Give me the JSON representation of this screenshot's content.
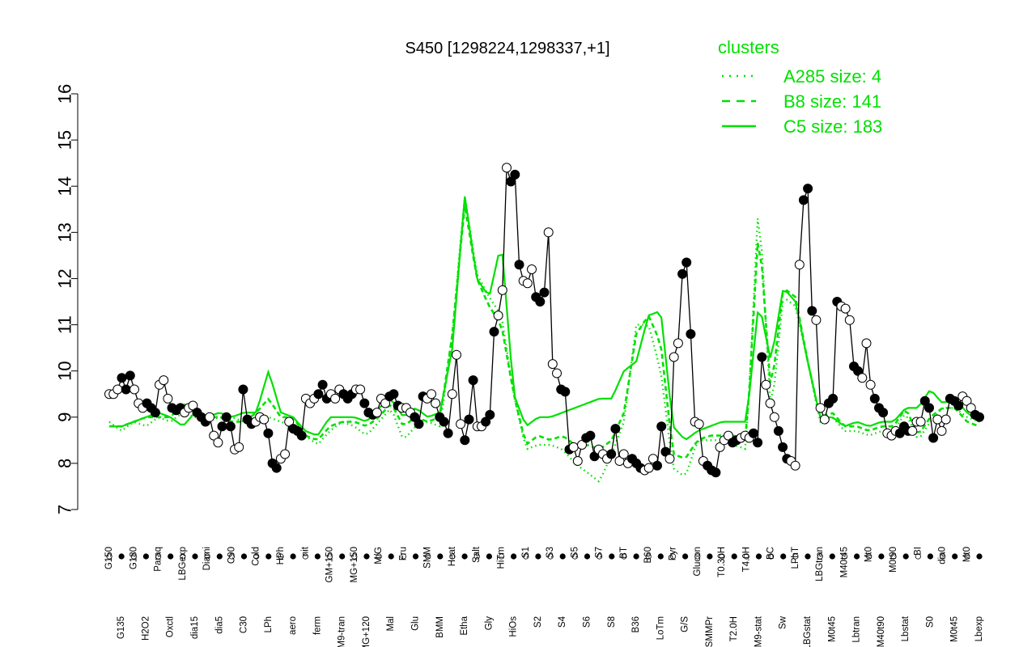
{
  "chart_data": {
    "type": "line",
    "title": "S450 [1298224,1298337,+1]",
    "xlabel": "",
    "ylabel": "",
    "ylim": [
      7,
      16
    ],
    "yticks": [
      7,
      8,
      9,
      10,
      11,
      12,
      13,
      14,
      15,
      16
    ],
    "legend": {
      "title": "clusters",
      "placement": "top-right",
      "color": "#00e000",
      "entries": [
        {
          "label": "A285 size: 4",
          "style": "dotted"
        },
        {
          "label": "B8 size: 141",
          "style": "dashed"
        },
        {
          "label": "C5 size: 183",
          "style": "solid"
        }
      ]
    },
    "x_tick_labels": [
      "G150",
      "G135",
      "G180",
      "H2O2",
      "Paraq",
      "Oxctl",
      "LBGexp",
      "dia15",
      "Diami",
      "dia5",
      "C90",
      "C30",
      "Cold",
      "LPh",
      "HPh",
      "aero",
      "nit",
      "ferm",
      "GM+150",
      "M9-tran",
      "MG+150",
      "MG+120",
      "M/G",
      "Mal",
      "Fru",
      "Glu",
      "SMM",
      "BMM",
      "Heat",
      "Etha",
      "Salt",
      "Gly",
      "HiTm",
      "HiOs",
      "S1",
      "S2",
      "S3",
      "S4",
      "S5",
      "S6",
      "S7",
      "S8",
      "BT",
      "B36",
      "B60",
      "LoTm",
      "Pyr",
      "G/S",
      "Glucon",
      "SMMPr",
      "T0.30H",
      "T2.0H",
      "T4.0H",
      "M9-stat",
      "BC",
      "Sw",
      "LPhT",
      "LBGstat",
      "LBGtran",
      "M0t45",
      "M40t45",
      "Lbtran",
      "Mt0",
      "M40t90",
      "M0t90",
      "Lbstat",
      "BI",
      "S0",
      "dia0",
      "M0t45",
      "Mt0",
      "Lbexp"
    ],
    "measured": [
      9.5,
      9.5,
      9.6,
      9.85,
      9.6,
      9.9,
      9.6,
      9.3,
      9.2,
      9.3,
      9.2,
      9.1,
      9.7,
      9.8,
      9.4,
      9.2,
      9.15,
      9.2,
      9.1,
      9.2,
      9.25,
      9.1,
      9.0,
      8.9,
      9.0,
      8.6,
      8.45,
      8.8,
      9.0,
      8.8,
      8.3,
      8.35,
      9.6,
      8.95,
      8.85,
      8.9,
      9.0,
      8.95,
      8.65,
      8.0,
      7.9,
      8.1,
      8.2,
      8.9,
      8.75,
      8.7,
      8.6,
      9.4,
      9.3,
      9.4,
      9.5,
      9.7,
      9.4,
      9.5,
      9.4,
      9.6,
      9.5,
      9.4,
      9.5,
      9.6,
      9.6,
      9.3,
      9.1,
      9.05,
      9.1,
      9.4,
      9.3,
      9.45,
      9.5,
      9.25,
      9.2,
      9.2,
      9.1,
      9.0,
      8.85,
      9.45,
      9.4,
      9.5,
      9.3,
      9.0,
      8.9,
      8.65,
      9.5,
      10.35,
      8.85,
      8.5,
      8.95,
      9.8,
      8.8,
      8.8,
      8.9,
      9.05,
      10.85,
      11.2,
      11.75,
      14.4,
      14.1,
      14.25,
      12.3,
      11.95,
      11.9,
      12.2,
      11.6,
      11.5,
      11.7,
      13.0,
      10.15,
      9.95,
      9.6,
      9.55,
      8.3,
      8.35,
      8.05,
      8.4,
      8.55,
      8.6,
      8.15,
      8.3,
      8.2,
      8.1,
      8.2,
      8.75,
      8.05,
      8.2,
      8.0,
      8.1,
      8.0,
      7.9,
      7.85,
      7.9,
      8.1,
      7.95,
      8.8,
      8.25,
      8.1,
      10.3,
      10.6,
      12.1,
      12.35,
      10.8,
      8.9,
      8.85,
      8.05,
      7.95,
      7.85,
      7.8,
      8.35,
      8.5,
      8.6,
      8.45,
      8.5,
      8.55,
      8.6,
      8.55,
      8.65,
      8.45,
      10.3,
      9.7,
      9.3,
      9.0,
      8.7,
      8.35,
      8.1,
      8.05,
      7.95,
      12.3,
      13.7,
      13.95,
      11.3,
      11.1,
      9.2,
      8.95,
      9.3,
      9.4,
      11.5,
      11.4,
      11.35,
      11.1,
      10.1,
      10.0,
      9.85,
      10.6,
      9.7,
      9.4,
      9.2,
      9.1,
      8.65,
      8.6,
      8.7,
      8.65,
      8.8,
      8.7,
      8.7,
      8.9,
      8.9,
      9.35,
      9.2,
      8.55,
      8.95,
      8.7,
      8.95,
      9.4,
      9.35,
      9.25,
      9.45,
      9.35,
      9.2,
      9.05,
      9.0
    ],
    "series": [
      {
        "name": "A285 size: 4",
        "values": [
          8.9,
          8.7,
          8.9,
          8.8,
          9.0,
          8.9,
          9.1,
          9.0,
          8.9,
          9.0,
          9.0,
          8.9,
          9.1,
          9.0,
          8.9,
          8.8,
          8.6,
          8.4,
          8.7,
          8.9,
          8.8,
          8.6,
          8.9,
          9.2,
          8.5,
          8.8,
          8.9,
          8.8,
          10.8,
          13.8,
          12.1,
          11.6,
          11.2,
          9.5,
          8.3,
          8.4,
          8.4,
          8.3,
          8.0,
          7.8,
          7.6,
          8.2,
          8.9,
          11.0,
          11.0,
          10.0,
          7.9,
          7.7,
          8.5,
          8.5,
          8.5,
          8.4,
          8.3,
          13.8,
          9.0,
          11.6,
          11.4,
          10.2,
          8.9,
          9.0,
          8.7,
          8.7,
          8.6,
          8.7,
          8.7,
          9.1,
          8.5,
          8.9,
          9.2,
          9.2,
          9.0,
          8.9
        ]
      },
      {
        "name": "B8 size: 141",
        "values": [
          8.8,
          8.8,
          8.9,
          9.0,
          9.0,
          9.0,
          9.3,
          9.1,
          9.0,
          9.0,
          8.9,
          8.9,
          9.1,
          9.4,
          9.0,
          9.0,
          8.6,
          8.5,
          8.8,
          8.9,
          8.9,
          8.8,
          9.0,
          9.3,
          8.8,
          9.0,
          8.9,
          9.0,
          10.8,
          13.6,
          12.0,
          11.4,
          11.0,
          9.5,
          8.4,
          8.6,
          8.5,
          8.6,
          8.4,
          8.4,
          8.3,
          8.5,
          9.1,
          10.8,
          11.2,
          10.6,
          8.2,
          8.1,
          8.5,
          8.6,
          8.6,
          8.6,
          8.5,
          13.2,
          9.5,
          11.8,
          11.6,
          10.2,
          9.0,
          9.1,
          8.8,
          8.8,
          8.7,
          8.8,
          8.8,
          9.2,
          8.6,
          9.0,
          9.2,
          9.2,
          8.9,
          8.8
        ]
      },
      {
        "name": "C5 size: 183",
        "values": [
          8.8,
          8.8,
          8.9,
          9.0,
          9.1,
          9.0,
          8.8,
          9.1,
          9.0,
          9.1,
          9.0,
          9.1,
          9.1,
          10.0,
          9.1,
          9.0,
          8.7,
          8.6,
          9.0,
          9.0,
          9.0,
          8.9,
          9.2,
          9.4,
          9.0,
          9.2,
          9.0,
          9.1,
          10.5,
          13.8,
          12.0,
          11.6,
          12.8,
          9.5,
          8.8,
          9.0,
          9.0,
          9.1,
          9.2,
          9.3,
          9.4,
          9.4,
          10.0,
          10.2,
          11.2,
          11.3,
          8.8,
          8.5,
          8.7,
          8.8,
          8.9,
          8.9,
          8.9,
          11.5,
          10.2,
          11.8,
          11.5,
          10.2,
          9.0,
          9.0,
          8.8,
          8.9,
          8.8,
          8.9,
          8.9,
          9.2,
          9.2,
          9.6,
          9.3,
          9.4,
          9.1,
          8.9
        ]
      }
    ],
    "colors": {
      "measured": "#000000",
      "clusters": "#00e000",
      "point_open": "#ffffff",
      "point_filled": "#000000"
    }
  }
}
